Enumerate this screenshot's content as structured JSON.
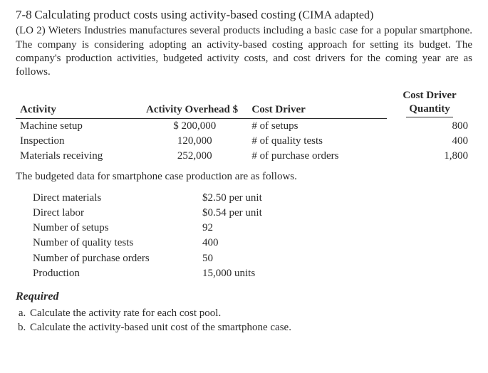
{
  "heading": {
    "number": "7-8",
    "title": "Calculating product costs using activity-based costing",
    "adapted": "(CIMA adapted)"
  },
  "intro": "(LO 2) Wieters Industries manufactures several products including a basic case for a popular smartphone. The company is considering adopting an activity-based costing approach for setting its budget. The company's production activities, budgeted activity costs, and cost drivers for the coming year are as follows.",
  "table1": {
    "headers": {
      "activity": "Activity",
      "overhead": "Activity Overhead $",
      "driver": "Cost Driver",
      "qty_line1": "Cost Driver",
      "qty_line2": "Quantity"
    },
    "rows": [
      {
        "activity": "Machine setup",
        "overhead": "$ 200,000",
        "driver": "# of setups",
        "qty": "800"
      },
      {
        "activity": "Inspection",
        "overhead": "120,000",
        "driver": "# of quality tests",
        "qty": "400"
      },
      {
        "activity": "Materials receiving",
        "overhead": "252,000",
        "driver": "# of purchase orders",
        "qty": "1,800"
      }
    ]
  },
  "midline": "The budgeted data for smartphone case production are as follows.",
  "table2": {
    "rows": [
      {
        "label": "Direct materials",
        "value": "$2.50 per unit"
      },
      {
        "label": "Direct labor",
        "value": "$0.54 per unit"
      },
      {
        "label": "Number of setups",
        "value": "92"
      },
      {
        "label": "Number of quality tests",
        "value": "400"
      },
      {
        "label": "Number of purchase orders",
        "value": "50"
      },
      {
        "label": "Production",
        "value": "15,000 units"
      }
    ]
  },
  "required": {
    "heading": "Required",
    "items": [
      "Calculate the activity rate for each cost pool.",
      "Calculate the activity-based unit cost of the smartphone case."
    ]
  }
}
